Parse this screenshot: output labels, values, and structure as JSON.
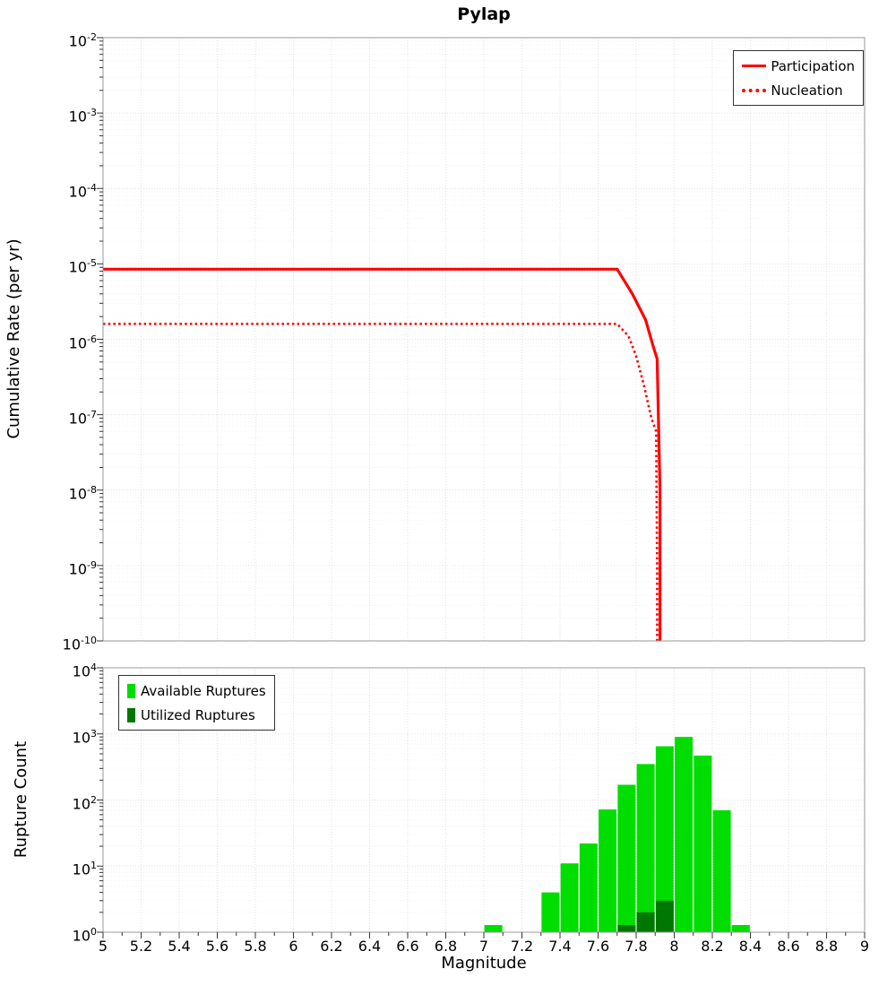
{
  "title": "Pylap",
  "colors": {
    "line": "#ff0000",
    "available": "#00dd00",
    "utilized": "#007700",
    "grid_major": "#e2e2e2",
    "grid_minor": "#f3f3f3",
    "axis": "#999999",
    "tick": "#333333"
  },
  "x_tick_labels": [
    "5",
    "5.2",
    "5.4",
    "5.6",
    "5.8",
    "6",
    "6.2",
    "6.4",
    "6.6",
    "6.8",
    "7",
    "7.2",
    "7.4",
    "7.6",
    "7.8",
    "8",
    "8.2",
    "8.4",
    "8.6",
    "8.8",
    "9"
  ],
  "chart_data": [
    {
      "type": "line",
      "title": "Pylap",
      "xlabel": "",
      "ylabel": "Cumulative Rate (per yr)",
      "xlim": [
        5,
        9
      ],
      "y_scale": "log",
      "ylim": [
        1e-10,
        0.01
      ],
      "y_tick_exponents": [
        -2,
        -3,
        -4,
        -5,
        -6,
        -7,
        -8,
        -9,
        -10
      ],
      "grid": true,
      "legend_position": "top-right",
      "series": [
        {
          "name": "Participation",
          "style": "solid",
          "color": "#ff0000",
          "x": [
            5.0,
            7.7,
            7.78,
            7.85,
            7.89,
            7.91,
            7.925,
            7.925
          ],
          "y": [
            8.5e-06,
            8.5e-06,
            4e-06,
            1.8e-06,
            8e-07,
            5.5e-07,
            1e-08,
            1e-10
          ]
        },
        {
          "name": "Nucleation",
          "style": "dotted",
          "color": "#ff0000",
          "x": [
            5.0,
            7.7,
            7.76,
            7.8,
            7.84,
            7.88,
            7.905,
            7.91,
            7.91
          ],
          "y": [
            1.6e-06,
            1.6e-06,
            1.1e-06,
            6e-07,
            2.5e-07,
            9e-08,
            6e-08,
            1e-09,
            1e-10
          ]
        }
      ]
    },
    {
      "type": "bar",
      "title": "",
      "xlabel": "Magnitude",
      "ylabel": "Rupture Count",
      "xlim": [
        5,
        9
      ],
      "y_scale": "log",
      "ylim": [
        1,
        10000
      ],
      "y_tick_exponents": [
        4,
        3,
        2,
        1,
        0
      ],
      "bar_width": 0.1,
      "grid": true,
      "legend_position": "top-left",
      "series": [
        {
          "name": "Available Ruptures",
          "color": "#00dd00",
          "centers": [
            7.05,
            7.35,
            7.45,
            7.55,
            7.65,
            7.75,
            7.85,
            7.95,
            8.05,
            8.15,
            8.25,
            8.35
          ],
          "values": [
            1,
            4,
            11,
            22,
            72,
            170,
            350,
            650,
            900,
            470,
            70,
            1
          ]
        },
        {
          "name": "Utilized Ruptures",
          "color": "#007700",
          "centers": [
            7.75,
            7.85,
            7.95
          ],
          "values": [
            1,
            2,
            3
          ]
        }
      ]
    }
  ]
}
